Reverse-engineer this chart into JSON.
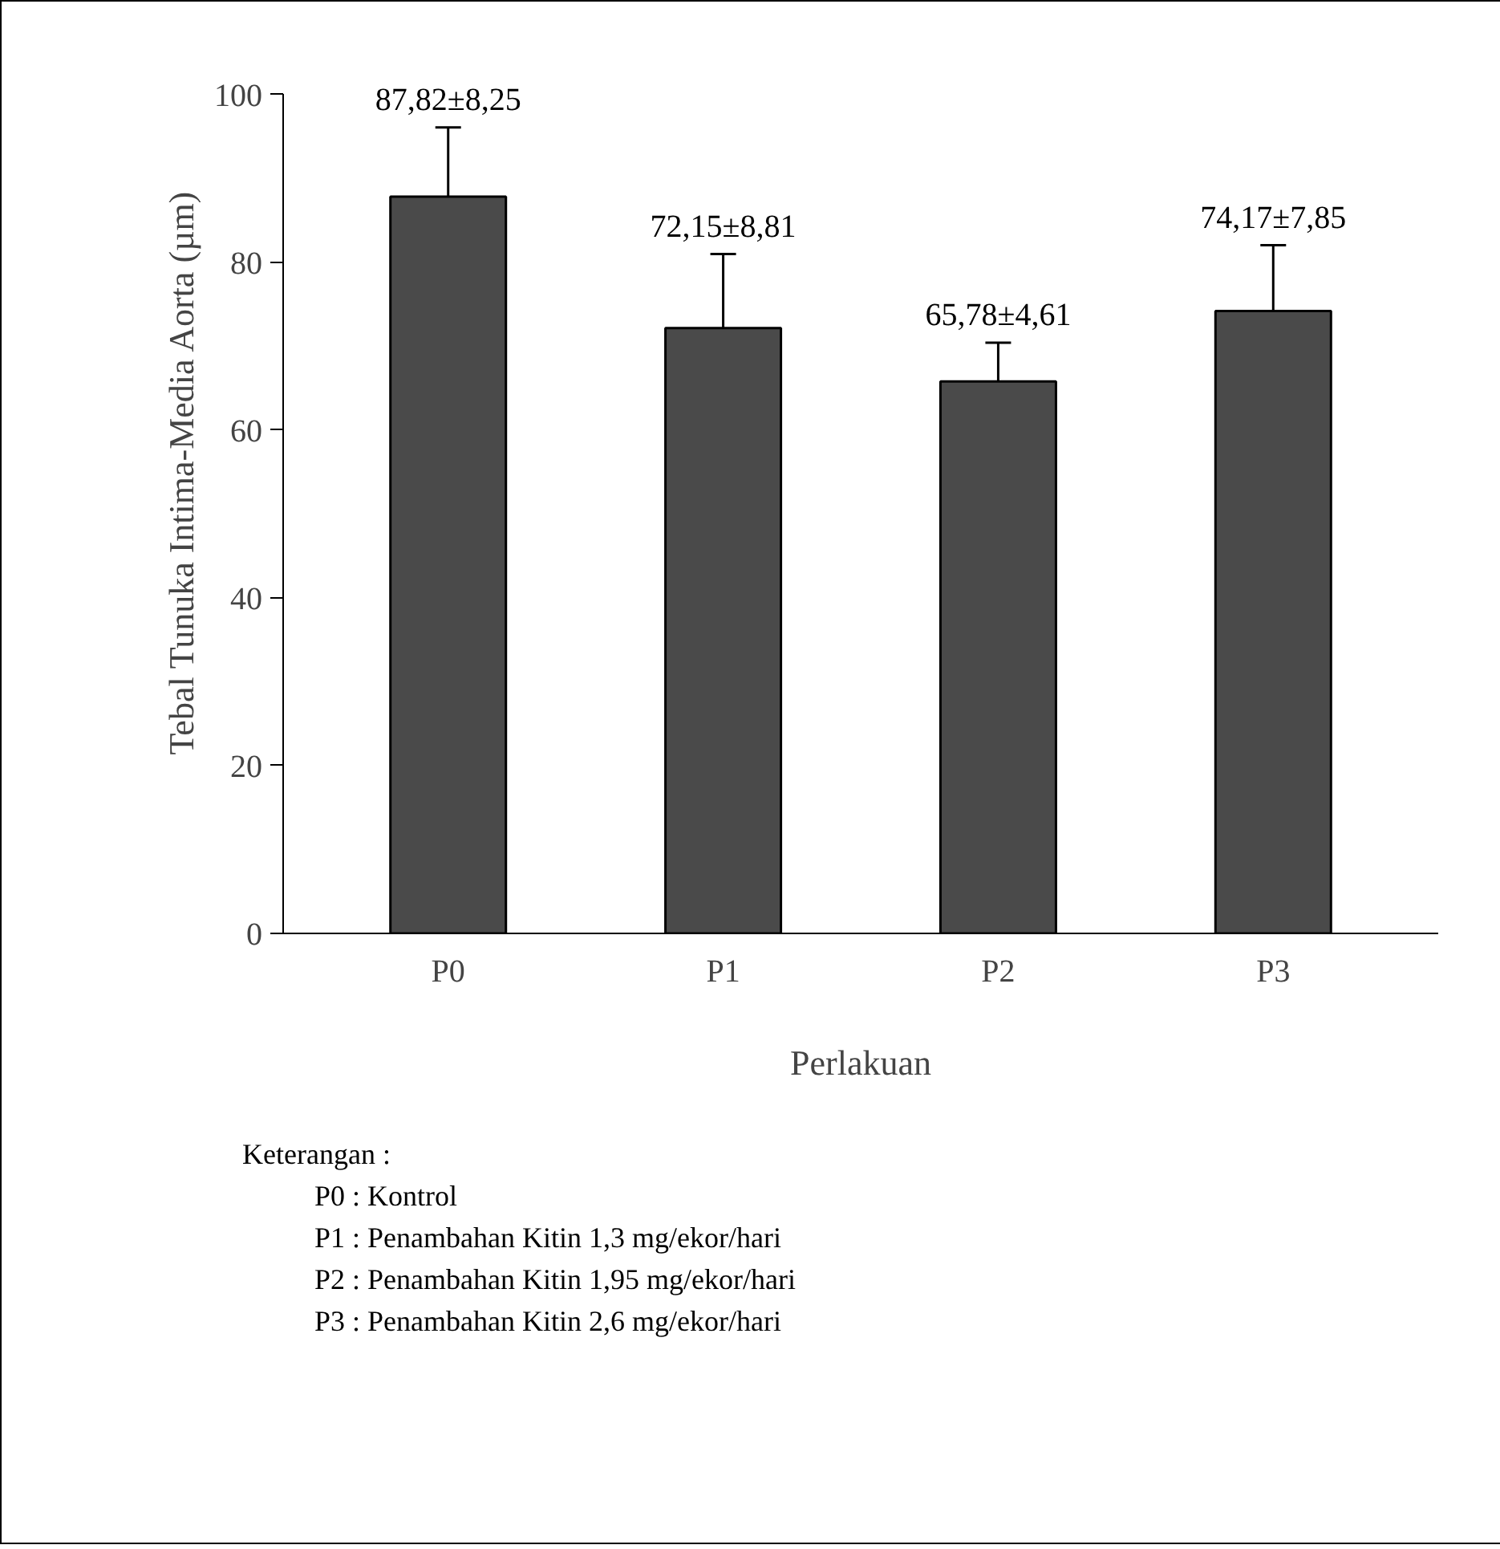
{
  "chart_data": {
    "type": "bar",
    "xlabel": "Perlakuan",
    "ylabel": "Tebal Tunuka Intima-Media Aorta (µm)",
    "categories": [
      "P0",
      "P1",
      "P2",
      "P3"
    ],
    "values": [
      87.82,
      72.15,
      65.78,
      74.17
    ],
    "errors": [
      8.25,
      8.81,
      4.61,
      7.85
    ],
    "value_labels": [
      "87,82±8,25",
      "72,15±8,81",
      "65,78±4,61",
      "74,17±7,85"
    ],
    "color": "#4a4a4a",
    "ylim": [
      0,
      100
    ],
    "yticks": [
      0,
      20,
      40,
      60,
      80,
      100
    ],
    "grid": false,
    "annotations": [
      "Keterangan :",
      "P0 : Kontrol",
      "P1 : Penambahan Kitin 1,3 mg/ekor/hari",
      "P2 : Penambahan Kitin 1,95 mg/ekor/hari",
      "P3 : Penambahan Kitin 2,6 mg/ekor/hari"
    ]
  }
}
